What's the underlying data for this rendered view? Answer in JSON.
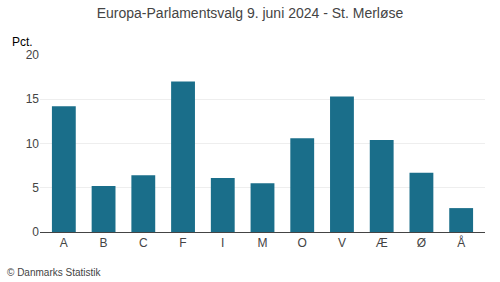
{
  "chart_data": {
    "type": "bar",
    "title": "Europa-Parlamentsvalg 9. juni 2024 - St. Merløse",
    "categories": [
      "A",
      "B",
      "C",
      "F",
      "I",
      "M",
      "O",
      "V",
      "Æ",
      "Ø",
      "Å"
    ],
    "values": [
      14.2,
      5.2,
      6.4,
      17.0,
      6.1,
      5.5,
      10.6,
      15.3,
      10.4,
      6.7,
      2.7
    ],
    "color": "#1a6e8a",
    "ylabel": "Pct.",
    "annotations": [
      "© Danmarks Statistik"
    ],
    "ylim": [
      0,
      20
    ],
    "yticks": [
      0,
      5,
      10,
      15,
      20
    ],
    "grid": true
  }
}
